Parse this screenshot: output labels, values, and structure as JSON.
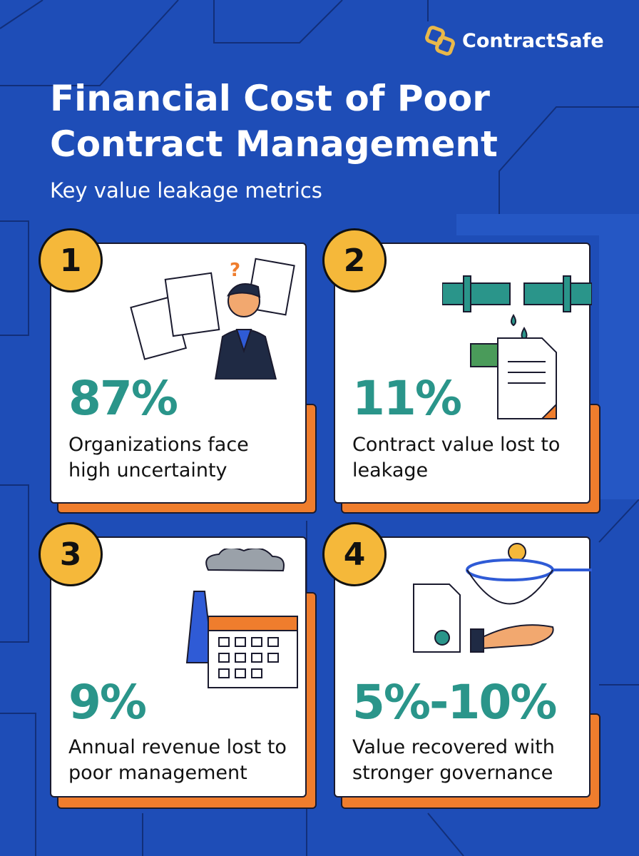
{
  "brand": "ContractSafe",
  "header": {
    "title": "Financial Cost of Poor Contract Management",
    "subtitle": "Key value leakage metrics"
  },
  "cards": [
    {
      "number": "1",
      "stat": "87%",
      "description": "Organizations face high uncertainty"
    },
    {
      "number": "2",
      "stat": "11%",
      "description": "Contract value lost to leakage"
    },
    {
      "number": "3",
      "stat": "9%",
      "description": "Annual revenue lost to poor management"
    },
    {
      "number": "4",
      "stat": "5%-10%",
      "description": "Value recovered with stronger governance"
    }
  ]
}
